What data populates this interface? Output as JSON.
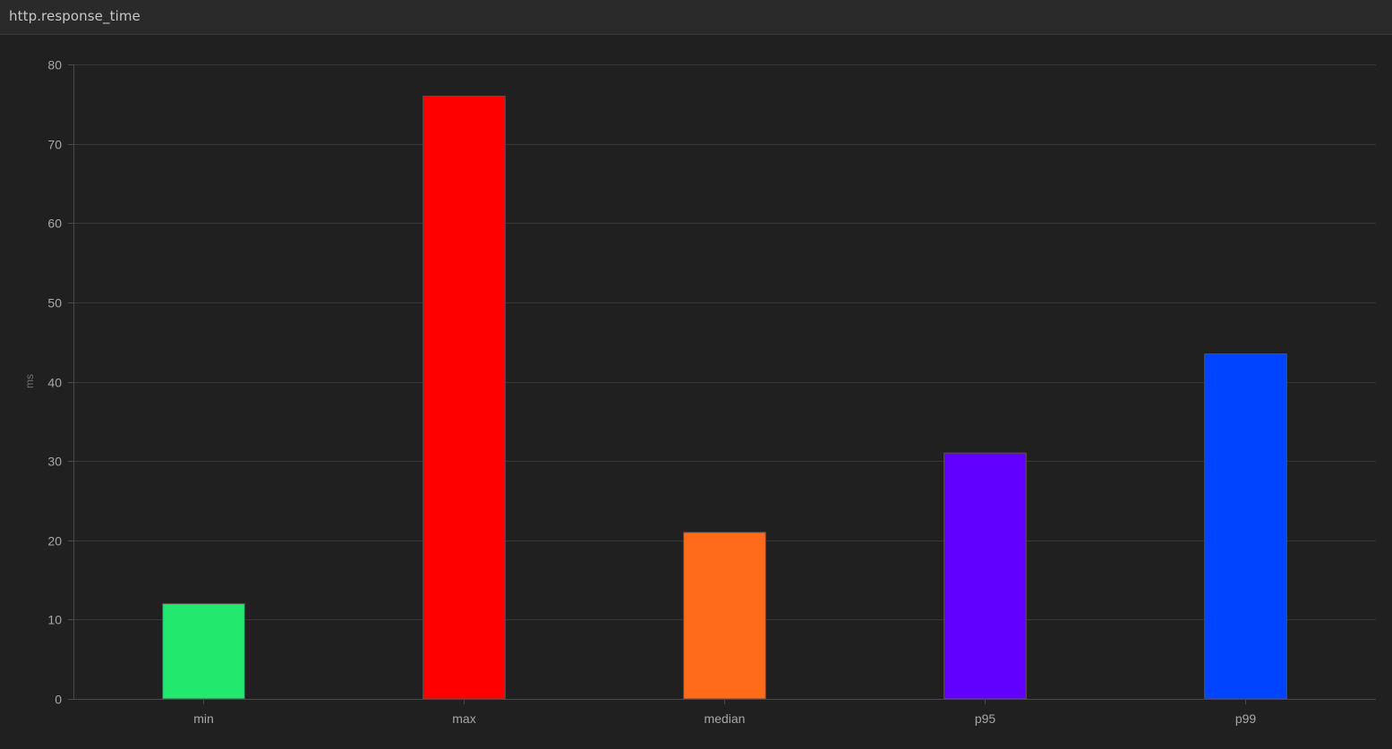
{
  "panel": {
    "title": "http.response_time"
  },
  "chart_data": {
    "type": "bar",
    "title": "",
    "xlabel": "",
    "ylabel": "ms",
    "categories": [
      "min",
      "max",
      "median",
      "p95",
      "p99"
    ],
    "values": [
      12,
      76,
      21,
      31,
      43.5
    ],
    "colors": [
      "#22e86e",
      "#ff0000",
      "#ff6b1a",
      "#6200ff",
      "#0044ff"
    ],
    "ylim": [
      0,
      80
    ],
    "yticks": [
      0,
      10,
      20,
      30,
      40,
      50,
      60,
      70,
      80
    ],
    "grid": true,
    "legend": "none",
    "theme": {
      "background": "#202020",
      "gridline": "#383838",
      "axis": "#4a4a4a",
      "bar_border": "#555555"
    }
  }
}
